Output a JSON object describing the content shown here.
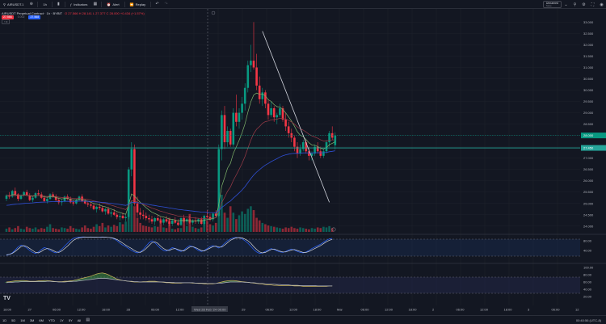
{
  "colors": {
    "background": "#131722",
    "up": "#089981",
    "down": "#f23645",
    "ema_fast": "#7fb46b",
    "ema_mid": "#9b3b47",
    "ema_slow": "#2f4fd4",
    "trendline": "#d1d4dc",
    "current_price_line": "#26a69a",
    "stoch_k": "#2962ff",
    "stoch_d": "#d1d4dc"
  },
  "toolbar": {
    "symbol": "AIRUSDT.1",
    "interval": "1h",
    "indicators_label": "Indicators",
    "alert_label": "Alert",
    "replay_label": "Replay",
    "layout_name": "Unnamed",
    "layout_status": "Save"
  },
  "legend": {
    "title": "AIRUSDT Perpetual Contract · 1h · BYBIT",
    "ohlc": "O 27.566  H 28.141  L 27.377  C 28.000 +0.434 (+1.57%)",
    "sell_price": "27.566",
    "spread": "0.002",
    "buy_price": "27.568",
    "collapse_label": "3"
  },
  "bottom_bar": {
    "ranges": [
      "1D",
      "5D",
      "1M",
      "3M",
      "6M",
      "YTD",
      "1Y",
      "5Y",
      "All"
    ],
    "clock": "00:40:56 (UTC-8)"
  },
  "price_axis": {
    "ticks": [
      "33.000",
      "32.500",
      "32.000",
      "31.500",
      "31.000",
      "30.500",
      "30.000",
      "29.500",
      "29.000",
      "28.500",
      "28.000",
      "27.500",
      "27.000",
      "26.500",
      "26.000",
      "25.500",
      "25.000",
      "24.500",
      "24.000"
    ],
    "current_price": "28.000",
    "line_price": "27.450"
  },
  "stoch_axis": {
    "ticks": [
      "80.00",
      "40.00"
    ]
  },
  "osc_axis": {
    "ticks": [
      "100.00",
      "80.00",
      "60.00",
      "40.00",
      "20.00"
    ]
  },
  "time_axis": {
    "labels": [
      "18:00",
      "27",
      "06:00",
      "12:00",
      "18:00",
      "28",
      "06:00",
      "12:00",
      "Wed 28 Feb '24",
      "00:00",
      "29",
      "06:00",
      "12:00",
      "18:00",
      "Mar",
      "06:00",
      "12:00",
      "18:00",
      "2",
      "06:00",
      "12:00",
      "18:00",
      "3",
      "06:00",
      "12"
    ]
  },
  "chart_data": {
    "type": "candlestick",
    "y_range": [
      23.85,
      33.3
    ],
    "x_unit": "hourly bars",
    "candles": [
      [
        25.2,
        25.4,
        25.1,
        25.35
      ],
      [
        25.35,
        25.5,
        25.2,
        25.3
      ],
      [
        25.3,
        25.6,
        25.25,
        25.55
      ],
      [
        25.55,
        25.7,
        25.3,
        25.4
      ],
      [
        25.4,
        25.45,
        25.1,
        25.2
      ],
      [
        25.2,
        25.4,
        25.15,
        25.35
      ],
      [
        25.35,
        25.55,
        25.3,
        25.5
      ],
      [
        25.5,
        25.6,
        25.3,
        25.35
      ],
      [
        25.35,
        25.45,
        25.1,
        25.15
      ],
      [
        25.15,
        25.3,
        25.05,
        25.25
      ],
      [
        25.25,
        25.5,
        25.2,
        25.45
      ],
      [
        25.45,
        25.6,
        25.35,
        25.4
      ],
      [
        25.4,
        25.5,
        25.2,
        25.25
      ],
      [
        25.25,
        25.35,
        25.05,
        25.1
      ],
      [
        25.1,
        25.3,
        25.0,
        25.2
      ],
      [
        25.2,
        25.45,
        25.15,
        25.4
      ],
      [
        25.4,
        25.5,
        25.25,
        25.3
      ],
      [
        25.3,
        25.4,
        25.1,
        25.15
      ],
      [
        25.15,
        25.25,
        24.95,
        25.05
      ],
      [
        25.05,
        25.2,
        24.9,
        25.1
      ],
      [
        25.1,
        25.35,
        25.05,
        25.3
      ],
      [
        25.3,
        25.4,
        25.15,
        25.2
      ],
      [
        25.2,
        25.3,
        25.0,
        25.05
      ],
      [
        25.05,
        25.15,
        24.9,
        25.0
      ],
      [
        25.0,
        25.2,
        24.95,
        25.15
      ],
      [
        25.15,
        25.35,
        25.1,
        25.3
      ],
      [
        25.3,
        25.4,
        25.05,
        25.1
      ],
      [
        25.1,
        25.2,
        24.95,
        25.0
      ],
      [
        25.0,
        25.1,
        24.85,
        24.95
      ],
      [
        24.95,
        25.05,
        24.8,
        24.9
      ],
      [
        24.9,
        25.0,
        24.7,
        24.75
      ],
      [
        24.75,
        24.9,
        24.6,
        24.85
      ],
      [
        24.85,
        25.0,
        24.7,
        24.8
      ],
      [
        24.8,
        24.9,
        24.6,
        24.65
      ],
      [
        24.65,
        24.8,
        24.5,
        24.75
      ],
      [
        24.75,
        24.85,
        24.5,
        24.55
      ],
      [
        24.55,
        24.7,
        24.4,
        24.6
      ],
      [
        24.6,
        24.75,
        24.45,
        24.5
      ],
      [
        24.5,
        24.6,
        24.3,
        24.4
      ],
      [
        24.4,
        24.55,
        24.25,
        24.45
      ],
      [
        24.45,
        24.6,
        24.3,
        24.35
      ],
      [
        24.35,
        24.5,
        24.2,
        24.4
      ],
      [
        24.4,
        26.6,
        24.3,
        26.5
      ],
      [
        26.5,
        27.7,
        26.2,
        27.4
      ],
      [
        27.4,
        27.6,
        24.9,
        25.0
      ],
      [
        25.0,
        25.3,
        24.4,
        24.6
      ],
      [
        24.6,
        24.8,
        24.3,
        24.5
      ],
      [
        24.5,
        24.7,
        24.3,
        24.45
      ],
      [
        24.45,
        24.6,
        24.25,
        24.35
      ],
      [
        24.35,
        24.5,
        24.15,
        24.3
      ],
      [
        24.3,
        24.45,
        24.1,
        24.2
      ],
      [
        24.2,
        24.4,
        24.05,
        24.35
      ],
      [
        24.35,
        24.5,
        24.2,
        24.25
      ],
      [
        24.25,
        24.4,
        24.1,
        24.15
      ],
      [
        24.15,
        24.35,
        24.05,
        24.3
      ],
      [
        24.3,
        24.45,
        24.15,
        24.2
      ],
      [
        24.2,
        24.3,
        24.0,
        24.1
      ],
      [
        24.1,
        24.3,
        24.0,
        24.25
      ],
      [
        24.25,
        24.4,
        24.1,
        24.15
      ],
      [
        24.15,
        24.3,
        24.0,
        24.05
      ],
      [
        24.05,
        24.4,
        24.0,
        24.35
      ],
      [
        24.35,
        24.5,
        24.15,
        24.2
      ],
      [
        24.2,
        24.35,
        24.05,
        24.3
      ],
      [
        24.3,
        24.45,
        24.1,
        24.15
      ],
      [
        24.15,
        24.3,
        24.05,
        24.25
      ],
      [
        24.25,
        24.4,
        24.1,
        24.2
      ],
      [
        24.2,
        24.35,
        24.1,
        24.3
      ],
      [
        24.3,
        24.4,
        24.05,
        24.1
      ],
      [
        24.1,
        24.5,
        24.05,
        24.45
      ],
      [
        24.45,
        24.7,
        24.35,
        24.4
      ],
      [
        24.4,
        24.55,
        24.2,
        24.3
      ],
      [
        24.3,
        24.6,
        24.2,
        24.55
      ],
      [
        24.55,
        24.7,
        24.4,
        24.45
      ],
      [
        24.45,
        27.6,
        24.4,
        27.4
      ],
      [
        27.4,
        29.1,
        26.9,
        28.9
      ],
      [
        28.9,
        29.3,
        27.4,
        27.7
      ],
      [
        27.7,
        28.4,
        27.5,
        28.2
      ],
      [
        28.2,
        28.3,
        27.5,
        27.6
      ],
      [
        27.6,
        29.2,
        27.5,
        29.0
      ],
      [
        29.0,
        29.8,
        28.4,
        28.6
      ],
      [
        28.6,
        29.2,
        28.3,
        29.0
      ],
      [
        29.0,
        29.7,
        28.7,
        29.4
      ],
      [
        29.4,
        30.3,
        29.1,
        30.1
      ],
      [
        30.1,
        31.3,
        29.9,
        31.1
      ],
      [
        31.1,
        32.0,
        30.8,
        31.3
      ],
      [
        31.3,
        33.0,
        30.9,
        31.0
      ],
      [
        31.0,
        31.6,
        30.0,
        30.2
      ],
      [
        30.2,
        30.6,
        29.4,
        29.6
      ],
      [
        29.6,
        30.1,
        29.3,
        29.9
      ],
      [
        29.9,
        30.0,
        29.2,
        29.4
      ],
      [
        29.4,
        29.6,
        28.7,
        28.9
      ],
      [
        28.9,
        29.5,
        28.8,
        29.2
      ],
      [
        29.2,
        29.3,
        28.6,
        28.8
      ],
      [
        28.8,
        29.0,
        28.5,
        28.9
      ],
      [
        28.9,
        29.4,
        28.8,
        29.2
      ],
      [
        29.2,
        29.3,
        28.6,
        28.7
      ],
      [
        28.7,
        29.0,
        28.2,
        28.4
      ],
      [
        28.4,
        28.6,
        27.9,
        28.1
      ],
      [
        28.1,
        28.3,
        27.7,
        27.9
      ],
      [
        27.9,
        28.0,
        27.3,
        27.5
      ],
      [
        27.5,
        27.7,
        27.0,
        27.2
      ],
      [
        27.2,
        27.6,
        27.1,
        27.4
      ],
      [
        27.4,
        27.8,
        27.3,
        27.7
      ],
      [
        27.7,
        27.8,
        27.2,
        27.3
      ],
      [
        27.3,
        27.5,
        26.9,
        27.1
      ],
      [
        27.1,
        27.3,
        26.9,
        27.2
      ],
      [
        27.2,
        27.6,
        27.1,
        27.5
      ],
      [
        27.5,
        27.7,
        27.2,
        27.3
      ],
      [
        27.3,
        27.5,
        27.0,
        27.1
      ],
      [
        27.1,
        27.4,
        27.0,
        27.3
      ],
      [
        27.3,
        27.8,
        27.2,
        27.7
      ],
      [
        27.7,
        28.2,
        27.5,
        28.1
      ],
      [
        28.1,
        28.4,
        27.8,
        27.9
      ],
      [
        27.57,
        28.14,
        27.38,
        28.0
      ]
    ],
    "volume": [
      5,
      7,
      4,
      6,
      9,
      5,
      4,
      8,
      6,
      5,
      7,
      4,
      6,
      5,
      8,
      12,
      6,
      5,
      4,
      7,
      6,
      5,
      9,
      6,
      5,
      4,
      7,
      10,
      6,
      5,
      8,
      12,
      9,
      14,
      7,
      10,
      8,
      11,
      9,
      15,
      12,
      16,
      38,
      48,
      40,
      22,
      14,
      10,
      9,
      8,
      7,
      9,
      8,
      20,
      7,
      6,
      22,
      5,
      4,
      6,
      6,
      22,
      9,
      28,
      8,
      6,
      5,
      7,
      14,
      18,
      12,
      10,
      14,
      50,
      58,
      30,
      22,
      40,
      30,
      20,
      26,
      32,
      28,
      36,
      40,
      34,
      22,
      18,
      14,
      12,
      10,
      9,
      8,
      7,
      6,
      5,
      7,
      6,
      8,
      6,
      5,
      7,
      6,
      5,
      4,
      6,
      5,
      7,
      6,
      8,
      7,
      9,
      6
    ],
    "trendline": [
      [
        88,
        32.6
      ],
      [
        111,
        25.05
      ]
    ],
    "stoch_k": [
      20,
      24,
      30,
      42,
      55,
      62,
      58,
      50,
      40,
      32,
      28,
      34,
      44,
      52,
      48,
      40,
      34,
      30,
      36,
      46,
      58,
      70,
      82,
      90,
      94,
      95,
      96,
      96,
      95,
      96,
      95,
      94,
      95,
      96,
      95,
      94,
      92,
      88,
      80,
      70,
      62,
      56,
      48,
      40,
      34,
      30,
      34,
      44,
      58,
      72,
      80,
      72,
      60,
      48,
      40,
      38,
      44,
      52,
      48,
      40,
      36,
      42,
      52,
      60,
      56,
      48,
      40,
      36,
      40,
      48,
      56,
      60,
      56,
      50,
      58,
      70,
      80,
      88,
      92,
      94,
      92,
      88,
      80,
      70,
      58,
      44,
      34,
      28,
      30,
      36,
      42,
      48,
      44,
      38,
      34,
      32,
      36,
      42,
      46,
      42,
      36,
      32,
      30,
      34,
      40,
      48,
      54,
      60,
      66,
      74,
      82,
      88,
      90
    ],
    "stoch_d": [
      22,
      24,
      28,
      36,
      46,
      56,
      60,
      56,
      48,
      40,
      32,
      30,
      36,
      44,
      48,
      46,
      40,
      34,
      32,
      38,
      48,
      58,
      70,
      82,
      88,
      92,
      94,
      95,
      95,
      95,
      95,
      95,
      94,
      95,
      95,
      94,
      93,
      90,
      85,
      78,
      70,
      62,
      55,
      48,
      40,
      34,
      32,
      38,
      48,
      60,
      72,
      76,
      70,
      58,
      48,
      42,
      40,
      46,
      48,
      44,
      40,
      38,
      46,
      54,
      56,
      52,
      46,
      40,
      38,
      44,
      50,
      56,
      58,
      54,
      54,
      62,
      72,
      82,
      88,
      92,
      93,
      92,
      87,
      80,
      70,
      56,
      44,
      34,
      30,
      32,
      38,
      44,
      46,
      42,
      37,
      34,
      34,
      38,
      42,
      44,
      40,
      36,
      32,
      32,
      36,
      42,
      48,
      54,
      60,
      68,
      76,
      82,
      86
    ],
    "osc_main": [
      60,
      61,
      62,
      63,
      63,
      64,
      64,
      63,
      62,
      62,
      62,
      63,
      63,
      64,
      64,
      63,
      62,
      61,
      61,
      61,
      62,
      62,
      63,
      64,
      66,
      68,
      70,
      72,
      74,
      76,
      79,
      82,
      84,
      85,
      83,
      80,
      76,
      72,
      68,
      66,
      64,
      63,
      62,
      61,
      60,
      60,
      60,
      61,
      61,
      62,
      62,
      62,
      61,
      60,
      59,
      58,
      58,
      57,
      57,
      57,
      57,
      58,
      58,
      58,
      57,
      57,
      56,
      56,
      55,
      55,
      55,
      55,
      56,
      58,
      60,
      62,
      63,
      64,
      64,
      63,
      62,
      61,
      60,
      59,
      58,
      57,
      56,
      55,
      54,
      53,
      52,
      52,
      51,
      51,
      50,
      50,
      50,
      50,
      50,
      49,
      49,
      49,
      48,
      48,
      48,
      48,
      48,
      48,
      48,
      48,
      48,
      49,
      49
    ],
    "osc_signal": [
      58,
      59,
      59,
      60,
      60,
      61,
      61,
      61,
      61,
      61,
      61,
      61,
      61,
      61,
      62,
      62,
      61,
      61,
      60,
      60,
      60,
      61,
      61,
      62,
      62,
      63,
      64,
      65,
      66,
      67,
      68,
      69,
      70,
      70,
      70,
      69,
      68,
      67,
      66,
      65,
      64,
      63,
      62,
      62,
      61,
      61,
      60,
      60,
      60,
      60,
      60,
      60,
      60,
      60,
      60,
      59,
      59,
      59,
      58,
      58,
      58,
      58,
      58,
      58,
      58,
      57,
      57,
      57,
      57,
      56,
      56,
      56,
      56,
      57,
      57,
      58,
      59,
      60,
      60,
      60,
      60,
      60,
      59,
      59,
      58,
      58,
      57,
      56,
      56,
      55,
      55,
      54,
      54,
      53,
      53,
      52,
      52,
      52,
      51,
      51,
      51,
      50,
      50,
      50,
      50,
      50,
      50,
      49,
      49,
      49,
      49,
      49,
      49
    ]
  }
}
